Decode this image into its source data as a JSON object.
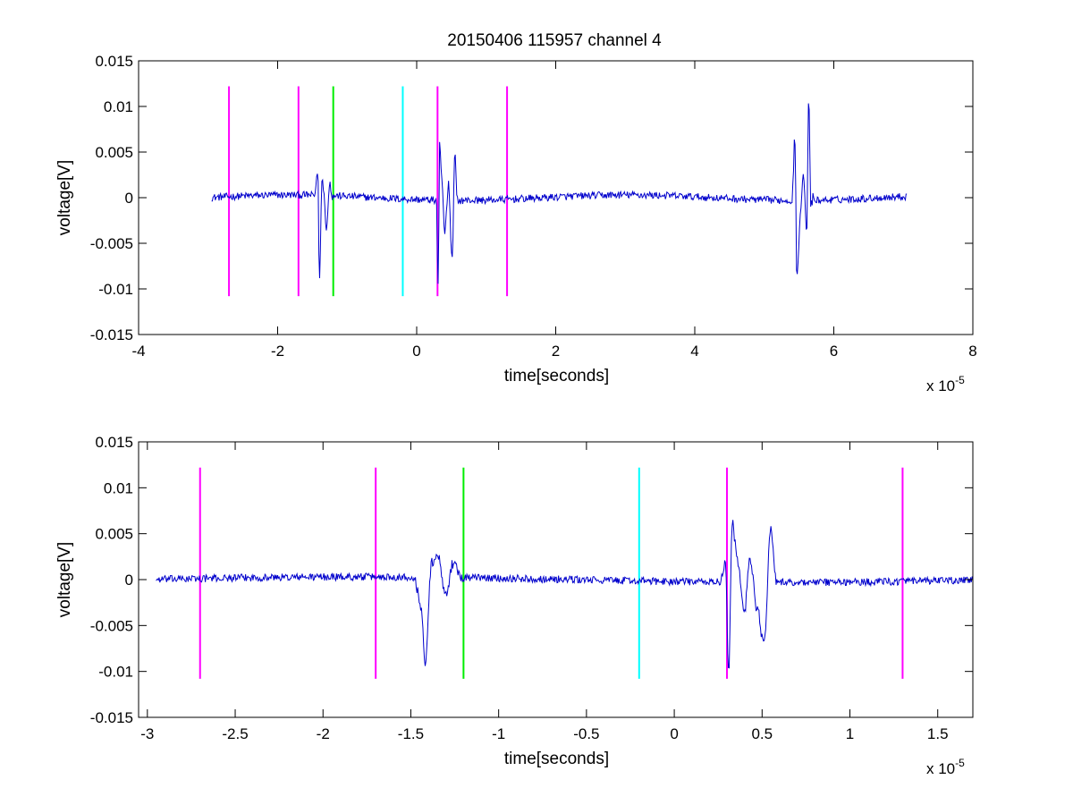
{
  "figure": {
    "title": "20150406 115957 channel 4",
    "colors": {
      "signal": "#0000cc",
      "magenta": "#ff00ff",
      "green": "#00ee00",
      "cyan": "#00ffff",
      "axis": "#000000"
    }
  },
  "chart_data": [
    {
      "type": "line",
      "title": "20150406 115957 channel 4",
      "xlabel": "time[seconds]",
      "ylabel": "voltage[V]",
      "x_multiplier_label": "x 10",
      "x_multiplier_exp": "-5",
      "xlim": [
        -4,
        8
      ],
      "ylim": [
        -0.015,
        0.015
      ],
      "xticks": [
        -4,
        -2,
        0,
        2,
        4,
        6,
        8
      ],
      "xtick_labels": [
        "-4",
        "-2",
        "0",
        "2",
        "4",
        "6",
        "8"
      ],
      "yticks": [
        -0.015,
        -0.01,
        -0.005,
        0,
        0.005,
        0.01,
        0.015
      ],
      "ytick_labels": [
        "-0.015",
        "-0.01",
        "-0.005",
        "0",
        "0.005",
        "0.01",
        "0.015"
      ],
      "grid": false,
      "signal": {
        "x_range": [
          -2.95,
          7.05
        ],
        "baseline_noise": 0.0004,
        "events": [
          {
            "x": [
              -1.48,
              -1.2
            ],
            "extrema": [
              [
                -1.42,
                0.0028
              ],
              [
                -1.4,
                -0.0093
              ],
              [
                -1.36,
                0.0025
              ],
              [
                -1.3,
                -0.003
              ],
              [
                -1.25,
                0.0015
              ]
            ]
          },
          {
            "x": [
              0.28,
              0.58
            ],
            "extrema": [
              [
                0.31,
                -0.0099
              ],
              [
                0.33,
                0.0062
              ],
              [
                0.36,
                0.002
              ],
              [
                0.4,
                -0.0035
              ],
              [
                0.46,
                0.0015
              ],
              [
                0.51,
                -0.0068
              ],
              [
                0.55,
                0.0056
              ]
            ]
          },
          {
            "x": [
              5.4,
              5.7
            ],
            "extrema": [
              [
                5.44,
                0.0066
              ],
              [
                5.47,
                -0.009
              ],
              [
                5.52,
                -0.0015
              ],
              [
                5.56,
                0.0025
              ],
              [
                5.61,
                -0.004
              ],
              [
                5.64,
                0.011
              ],
              [
                5.67,
                -0.001
              ]
            ]
          }
        ]
      },
      "markers": [
        {
          "x": -2.7,
          "color": "magenta"
        },
        {
          "x": -1.7,
          "color": "magenta"
        },
        {
          "x": -1.2,
          "color": "green"
        },
        {
          "x": -0.2,
          "color": "cyan"
        },
        {
          "x": 0.3,
          "color": "magenta"
        },
        {
          "x": 1.3,
          "color": "magenta"
        }
      ],
      "marker_range": [
        -0.0108,
        0.0122
      ]
    },
    {
      "type": "line",
      "xlabel": "time[seconds]",
      "ylabel": "voltage[V]",
      "x_multiplier_label": "x 10",
      "x_multiplier_exp": "-5",
      "xlim": [
        -3.05,
        1.7
      ],
      "ylim": [
        -0.015,
        0.015
      ],
      "xticks": [
        -3,
        -2.5,
        -2,
        -1.5,
        -1,
        -0.5,
        0,
        0.5,
        1,
        1.5
      ],
      "xtick_labels": [
        "-3",
        "-2.5",
        "-2",
        "-1.5",
        "-1",
        "-0.5",
        "0",
        "0.5",
        "1",
        "1.5"
      ],
      "yticks": [
        -0.015,
        -0.01,
        -0.005,
        0,
        0.005,
        0.01,
        0.015
      ],
      "ytick_labels": [
        "-0.015",
        "-0.01",
        "-0.005",
        "0",
        "0.005",
        "0.01",
        "0.015"
      ],
      "grid": false,
      "signal": {
        "x_range": [
          -2.95,
          1.7
        ],
        "baseline_noise": 0.0004,
        "events": [
          {
            "x": [
              -1.48,
              -1.2
            ],
            "extrema": [
              [
                -1.44,
                -0.003
              ],
              [
                -1.42,
                -0.0093
              ],
              [
                -1.38,
                0.002
              ],
              [
                -1.35,
                0.0028
              ],
              [
                -1.3,
                -0.0015
              ],
              [
                -1.26,
                0.0018
              ]
            ]
          },
          {
            "x": [
              0.27,
              0.58
            ],
            "extrema": [
              [
                0.29,
                0.0023
              ],
              [
                0.31,
                -0.0099
              ],
              [
                0.33,
                0.0062
              ],
              [
                0.36,
                0.002
              ],
              [
                0.4,
                -0.0035
              ],
              [
                0.43,
                0.0025
              ],
              [
                0.47,
                -0.003
              ],
              [
                0.51,
                -0.007
              ],
              [
                0.55,
                0.0056
              ]
            ]
          }
        ]
      },
      "markers": [
        {
          "x": -2.7,
          "color": "magenta"
        },
        {
          "x": -1.7,
          "color": "magenta"
        },
        {
          "x": -1.2,
          "color": "green"
        },
        {
          "x": -0.2,
          "color": "cyan"
        },
        {
          "x": 0.3,
          "color": "magenta"
        },
        {
          "x": 1.3,
          "color": "magenta"
        }
      ],
      "marker_range": [
        -0.0108,
        0.0122
      ]
    }
  ]
}
